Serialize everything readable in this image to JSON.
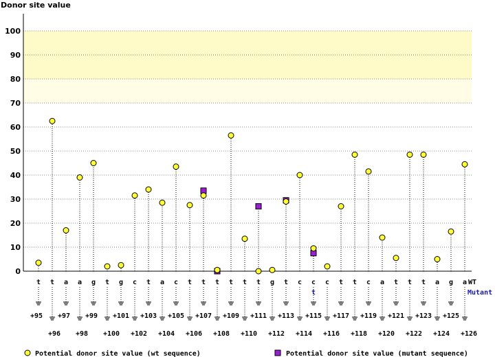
{
  "chart_data": {
    "type": "scatter",
    "title": "Donor site value",
    "ylim": [
      0,
      100
    ],
    "yticks": [
      0,
      10,
      20,
      30,
      40,
      50,
      60,
      70,
      80,
      90,
      100
    ],
    "highlight_band": [
      70,
      100
    ],
    "grid": true,
    "positions": [
      "+95",
      "+96",
      "+97",
      "+98",
      "+99",
      "+100",
      "+101",
      "+102",
      "+103",
      "+104",
      "+105",
      "+106",
      "+107",
      "+108",
      "+109",
      "+110",
      "+111",
      "+112",
      "+113",
      "+114",
      "+115",
      "+116",
      "+117",
      "+118",
      "+119",
      "+120",
      "+121",
      "+122",
      "+123",
      "+124",
      "+125",
      "+126"
    ],
    "wt_bases": [
      "t",
      "t",
      "a",
      "a",
      "g",
      "t",
      "g",
      "c",
      "t",
      "a",
      "c",
      "t",
      "t",
      "t",
      "t",
      "t",
      "t",
      "g",
      "t",
      "c",
      "c",
      "c",
      "t",
      "t",
      "c",
      "a",
      "t",
      "t",
      "t",
      "a",
      "g",
      "a"
    ],
    "mutant_bases": [
      "",
      "",
      "",
      "",
      "",
      "",
      "",
      "",
      "",
      "",
      "",
      "",
      "",
      "",
      "",
      "",
      "",
      "",
      "",
      "",
      "t",
      "",
      "",
      "",
      "",
      "",
      "",
      "",
      "",
      "",
      "",
      ""
    ],
    "row_labels": {
      "wt": "WT",
      "mutant": "Mutant"
    },
    "series": [
      {
        "name": "Potential donor site value (wt sequence)",
        "color": "#ffff33",
        "values": [
          3.5,
          62.5,
          17,
          39,
          45,
          2,
          2.5,
          31.5,
          34,
          28.5,
          43.5,
          27.5,
          31.5,
          0.5,
          56.5,
          13.5,
          0,
          0.5,
          29,
          40,
          9.5,
          2,
          27,
          48.5,
          41.5,
          14,
          5.5,
          48.5,
          48.5,
          5,
          16.5,
          44.5
        ]
      },
      {
        "name": "Potential donor site value (mutant sequence)",
        "color": "#9a1fd1",
        "values": [
          null,
          null,
          null,
          null,
          null,
          null,
          null,
          null,
          null,
          null,
          null,
          null,
          33.5,
          0,
          null,
          null,
          27,
          null,
          29.5,
          null,
          7.5,
          null,
          null,
          null,
          null,
          null,
          null,
          null,
          null,
          null,
          null,
          null
        ]
      }
    ]
  }
}
